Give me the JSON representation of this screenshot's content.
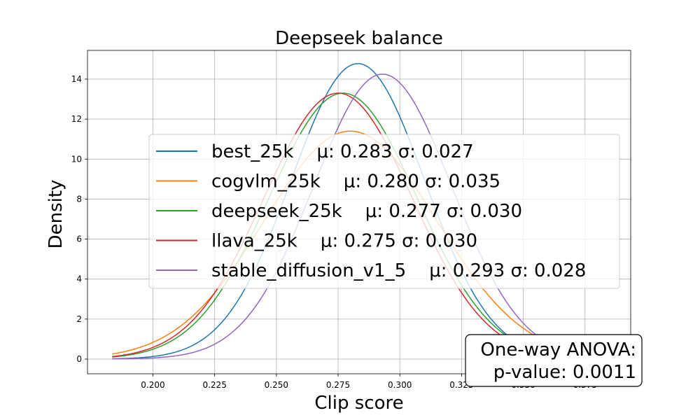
{
  "chart_data": {
    "type": "line",
    "title": "Deepseek balance",
    "xlabel": "Clip score",
    "ylabel": "Density",
    "xlim": [
      0.1735,
      0.3935
    ],
    "ylim": [
      -0.735,
      15.435
    ],
    "grid": true,
    "x_ticks": [
      0.2,
      0.225,
      0.25,
      0.275,
      0.3,
      0.325,
      0.35,
      0.375
    ],
    "x_tick_labels": [
      "0.200",
      "0.225",
      "0.250",
      "0.275",
      "0.300",
      "0.325",
      "0.350",
      "0.375"
    ],
    "y_ticks": [
      0,
      2,
      4,
      6,
      8,
      10,
      12,
      14
    ],
    "y_tick_labels": [
      "0",
      "2",
      "4",
      "6",
      "8",
      "10",
      "12",
      "14"
    ],
    "x_range": [
      0.1835,
      0.3835
    ],
    "series": [
      {
        "name": "best_25k",
        "label": "best_25k    μ: 0.283 σ: 0.027",
        "mu": 0.283,
        "sigma": 0.027,
        "color": "#1f77b4"
      },
      {
        "name": "cogvlm_25k",
        "label": "cogvlm_25k    μ: 0.280 σ: 0.035",
        "mu": 0.28,
        "sigma": 0.035,
        "color": "#ff7f0e"
      },
      {
        "name": "deepseek_25k",
        "label": "deepseek_25k    μ: 0.277 σ: 0.030",
        "mu": 0.277,
        "sigma": 0.03,
        "color": "#2ca02c"
      },
      {
        "name": "llava_25k",
        "label": "llava_25k    μ: 0.275 σ: 0.030",
        "mu": 0.275,
        "sigma": 0.03,
        "color": "#d62728"
      },
      {
        "name": "stable_diffusion_v1_5",
        "label": "stable_diffusion_v1_5    μ: 0.293 σ: 0.028",
        "mu": 0.293,
        "sigma": 0.028,
        "color": "#9467bd"
      }
    ],
    "legend_position": "center-right",
    "annotation": {
      "line1": "One-way ANOVA:",
      "line2": "p-value: 0.0011",
      "position": "bottom-right"
    }
  }
}
